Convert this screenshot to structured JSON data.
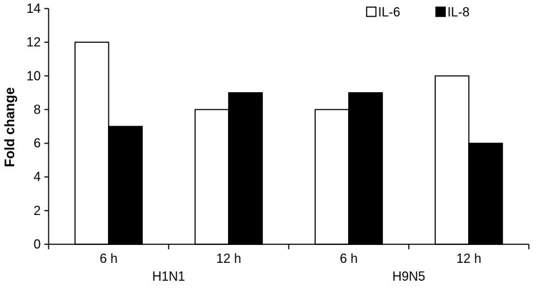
{
  "chart_data": {
    "type": "bar",
    "categories": [
      "6 h",
      "12 h",
      "6 h",
      "12 h"
    ],
    "groups": [
      {
        "label": "H1N1",
        "categories": [
          "6 h",
          "12 h"
        ]
      },
      {
        "label": "H9N5",
        "categories": [
          "6 h",
          "12 h"
        ]
      }
    ],
    "series": [
      {
        "name": "IL-6",
        "values": [
          12,
          8,
          8,
          10
        ],
        "fill": "#ffffff",
        "stroke": "#000000"
      },
      {
        "name": "IL-8",
        "values": [
          7,
          9,
          9,
          6
        ],
        "fill": "#000000",
        "stroke": "#000000"
      }
    ],
    "ylabel": "Fold change",
    "xlabel": "",
    "ylim": [
      0,
      14
    ],
    "yticks": [
      0,
      2,
      4,
      6,
      8,
      10,
      12,
      14
    ],
    "grid": false,
    "legend_position": "top-right"
  }
}
